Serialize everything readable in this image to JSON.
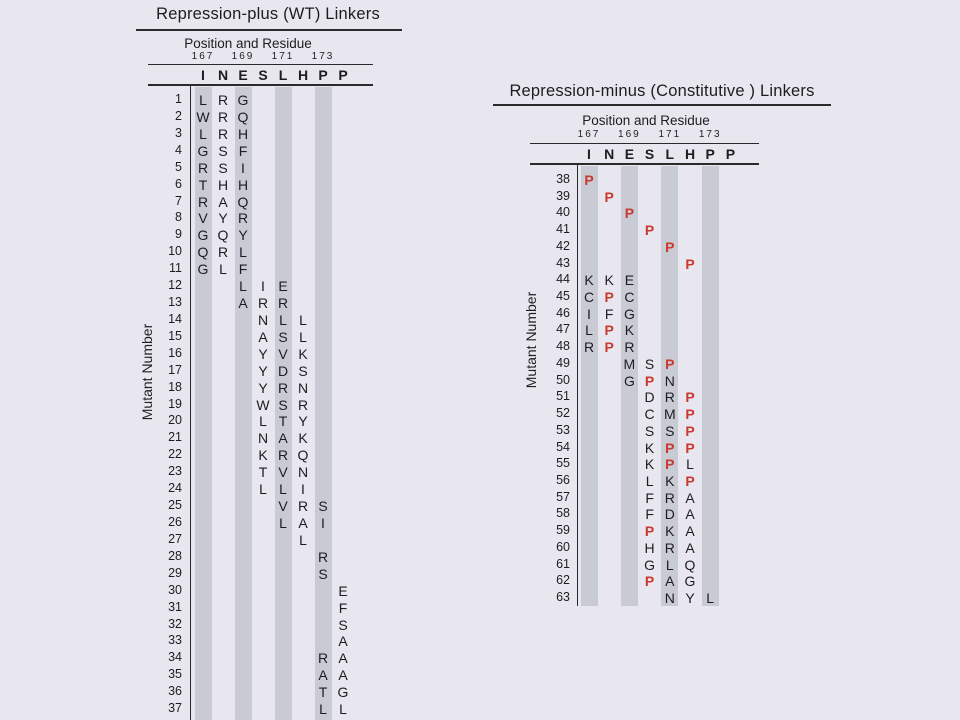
{
  "figure_name": "Linker mutant sequences",
  "colors": {
    "background": "#e8e7ef",
    "column_shade": "#c8cad4",
    "text": "#1d1d20",
    "mutant_p_red": "#c9392f",
    "line": "#2a2a2c"
  },
  "panels": [
    {
      "id": "repression-plus",
      "title": "Repression-plus (WT) Linkers",
      "subtitle": "Position and Residue",
      "positions": [
        "167",
        "169",
        "171",
        "173"
      ],
      "residues": [
        "I",
        "N",
        "E",
        "S",
        "L",
        "H",
        "P",
        "P"
      ],
      "ylabel": "Mutant Number",
      "shaded_columns": [
        0,
        2,
        4,
        6
      ],
      "rows": [
        {
          "n": "1",
          "cells": [
            [
              0,
              "L"
            ],
            [
              1,
              "R"
            ],
            [
              2,
              "G"
            ]
          ]
        },
        {
          "n": "2",
          "cells": [
            [
              0,
              "W"
            ],
            [
              1,
              "R"
            ],
            [
              2,
              "Q"
            ]
          ]
        },
        {
          "n": "3",
          "cells": [
            [
              0,
              "L"
            ],
            [
              1,
              "R"
            ],
            [
              2,
              "H"
            ]
          ]
        },
        {
          "n": "4",
          "cells": [
            [
              0,
              "G"
            ],
            [
              1,
              "S"
            ],
            [
              2,
              "F"
            ]
          ]
        },
        {
          "n": "5",
          "cells": [
            [
              0,
              "R"
            ],
            [
              1,
              "S"
            ],
            [
              2,
              "I"
            ]
          ]
        },
        {
          "n": "6",
          "cells": [
            [
              0,
              "T"
            ],
            [
              1,
              "H"
            ],
            [
              2,
              "H"
            ]
          ]
        },
        {
          "n": "7",
          "cells": [
            [
              0,
              "R"
            ],
            [
              1,
              "A"
            ],
            [
              2,
              "Q"
            ]
          ]
        },
        {
          "n": "8",
          "cells": [
            [
              0,
              "V"
            ],
            [
              1,
              "Y"
            ],
            [
              2,
              "R"
            ]
          ]
        },
        {
          "n": "9",
          "cells": [
            [
              0,
              "G"
            ],
            [
              1,
              "Q"
            ],
            [
              2,
              "Y"
            ]
          ]
        },
        {
          "n": "10",
          "cells": [
            [
              0,
              "Q"
            ],
            [
              1,
              "R"
            ],
            [
              2,
              "L"
            ]
          ]
        },
        {
          "n": "11",
          "cells": [
            [
              0,
              "G"
            ],
            [
              1,
              "L"
            ],
            [
              2,
              "F"
            ]
          ]
        },
        {
          "n": "12",
          "cells": [
            [
              2,
              "L"
            ],
            [
              3,
              "I"
            ],
            [
              4,
              "E"
            ]
          ]
        },
        {
          "n": "13",
          "cells": [
            [
              2,
              "A"
            ],
            [
              3,
              "R"
            ],
            [
              4,
              "R"
            ]
          ]
        },
        {
          "n": "14",
          "cells": [
            [
              3,
              "N"
            ],
            [
              4,
              "L"
            ],
            [
              5,
              "L"
            ]
          ]
        },
        {
          "n": "15",
          "cells": [
            [
              3,
              "A"
            ],
            [
              4,
              "S"
            ],
            [
              5,
              "L"
            ]
          ]
        },
        {
          "n": "16",
          "cells": [
            [
              3,
              "Y"
            ],
            [
              4,
              "V"
            ],
            [
              5,
              "K"
            ]
          ]
        },
        {
          "n": "17",
          "cells": [
            [
              3,
              "Y"
            ],
            [
              4,
              "D"
            ],
            [
              5,
              "S"
            ]
          ]
        },
        {
          "n": "18",
          "cells": [
            [
              3,
              "Y"
            ],
            [
              4,
              "R"
            ],
            [
              5,
              "N"
            ]
          ]
        },
        {
          "n": "19",
          "cells": [
            [
              3,
              "W"
            ],
            [
              4,
              "S"
            ],
            [
              5,
              "R"
            ]
          ]
        },
        {
          "n": "20",
          "cells": [
            [
              3,
              "L"
            ],
            [
              4,
              "T"
            ],
            [
              5,
              "Y"
            ]
          ]
        },
        {
          "n": "21",
          "cells": [
            [
              3,
              "N"
            ],
            [
              4,
              "A"
            ],
            [
              5,
              "K"
            ]
          ]
        },
        {
          "n": "22",
          "cells": [
            [
              3,
              "K"
            ],
            [
              4,
              "R"
            ],
            [
              5,
              "Q"
            ]
          ]
        },
        {
          "n": "23",
          "cells": [
            [
              3,
              "T"
            ],
            [
              4,
              "V"
            ],
            [
              5,
              "N"
            ]
          ]
        },
        {
          "n": "24",
          "cells": [
            [
              3,
              "L"
            ],
            [
              4,
              "L"
            ],
            [
              5,
              "I"
            ]
          ]
        },
        {
          "n": "25",
          "cells": [
            [
              4,
              "V"
            ],
            [
              5,
              "R"
            ],
            [
              6,
              "S"
            ]
          ]
        },
        {
          "n": "26",
          "cells": [
            [
              4,
              "L"
            ],
            [
              5,
              "A"
            ],
            [
              6,
              "I"
            ]
          ]
        },
        {
          "n": "27",
          "cells": [
            [
              5,
              "L"
            ]
          ]
        },
        {
          "n": "28",
          "cells": [
            [
              6,
              "R"
            ]
          ]
        },
        {
          "n": "29",
          "cells": [
            [
              6,
              "S"
            ]
          ]
        },
        {
          "n": "30",
          "cells": [
            [
              7,
              "E"
            ]
          ]
        },
        {
          "n": "31",
          "cells": [
            [
              7,
              "F"
            ]
          ]
        },
        {
          "n": "32",
          "cells": [
            [
              7,
              "S"
            ]
          ]
        },
        {
          "n": "33",
          "cells": [
            [
              7,
              "A"
            ]
          ]
        },
        {
          "n": "34",
          "cells": [
            [
              6,
              "R"
            ],
            [
              7,
              "A"
            ]
          ]
        },
        {
          "n": "35",
          "cells": [
            [
              6,
              "A"
            ],
            [
              7,
              "A"
            ]
          ]
        },
        {
          "n": "36",
          "cells": [
            [
              6,
              "T"
            ],
            [
              7,
              "G"
            ]
          ]
        },
        {
          "n": "37",
          "cells": [
            [
              6,
              "L"
            ],
            [
              7,
              "L"
            ]
          ]
        }
      ]
    },
    {
      "id": "repression-minus",
      "title": "Repression-minus (Constitutive ) Linkers",
      "subtitle": "Position and Residue",
      "positions": [
        "167",
        "169",
        "171",
        "173"
      ],
      "residues": [
        "I",
        "N",
        "E",
        "S",
        "L",
        "H",
        "P",
        "P"
      ],
      "ylabel": "Mutant Number",
      "shaded_columns": [
        0,
        2,
        4,
        6
      ],
      "rows": [
        {
          "n": "38",
          "cells": [
            [
              0,
              "P",
              1
            ]
          ]
        },
        {
          "n": "39",
          "cells": [
            [
              1,
              "P",
              1
            ]
          ]
        },
        {
          "n": "40",
          "cells": [
            [
              2,
              "P",
              1
            ]
          ]
        },
        {
          "n": "41",
          "cells": [
            [
              3,
              "P",
              1
            ]
          ]
        },
        {
          "n": "42",
          "cells": [
            [
              4,
              "P",
              1
            ]
          ]
        },
        {
          "n": "43",
          "cells": [
            [
              5,
              "P",
              1
            ]
          ]
        },
        {
          "n": "44",
          "cells": [
            [
              0,
              "K"
            ],
            [
              1,
              "K"
            ],
            [
              2,
              "E"
            ]
          ]
        },
        {
          "n": "45",
          "cells": [
            [
              0,
              "C"
            ],
            [
              1,
              "P",
              1
            ],
            [
              2,
              "C"
            ]
          ]
        },
        {
          "n": "46",
          "cells": [
            [
              0,
              "I"
            ],
            [
              1,
              "F"
            ],
            [
              2,
              "G"
            ]
          ]
        },
        {
          "n": "47",
          "cells": [
            [
              0,
              "L"
            ],
            [
              1,
              "P",
              1
            ],
            [
              2,
              "K"
            ]
          ]
        },
        {
          "n": "48",
          "cells": [
            [
              0,
              "R"
            ],
            [
              1,
              "P",
              1
            ],
            [
              2,
              "R"
            ]
          ]
        },
        {
          "n": "49",
          "cells": [
            [
              2,
              "M"
            ],
            [
              3,
              "S"
            ],
            [
              4,
              "P",
              1
            ]
          ]
        },
        {
          "n": "50",
          "cells": [
            [
              2,
              "G"
            ],
            [
              3,
              "P",
              1
            ],
            [
              4,
              "N"
            ]
          ]
        },
        {
          "n": "51",
          "cells": [
            [
              3,
              "D"
            ],
            [
              4,
              "R"
            ],
            [
              5,
              "P",
              1
            ]
          ]
        },
        {
          "n": "52",
          "cells": [
            [
              3,
              "C"
            ],
            [
              4,
              "M"
            ],
            [
              5,
              "P",
              1
            ]
          ]
        },
        {
          "n": "53",
          "cells": [
            [
              3,
              "S"
            ],
            [
              4,
              "S"
            ],
            [
              5,
              "P",
              1
            ]
          ]
        },
        {
          "n": "54",
          "cells": [
            [
              3,
              "K"
            ],
            [
              4,
              "P",
              1
            ],
            [
              5,
              "P",
              1
            ]
          ]
        },
        {
          "n": "55",
          "cells": [
            [
              3,
              "K"
            ],
            [
              4,
              "P",
              1
            ],
            [
              5,
              "L"
            ]
          ]
        },
        {
          "n": "56",
          "cells": [
            [
              3,
              "L"
            ],
            [
              4,
              "K"
            ],
            [
              5,
              "P",
              1
            ]
          ]
        },
        {
          "n": "57",
          "cells": [
            [
              3,
              "F"
            ],
            [
              4,
              "R"
            ],
            [
              5,
              "A"
            ]
          ]
        },
        {
          "n": "58",
          "cells": [
            [
              3,
              "F"
            ],
            [
              4,
              "D"
            ],
            [
              5,
              "A"
            ]
          ]
        },
        {
          "n": "59",
          "cells": [
            [
              3,
              "P",
              1
            ],
            [
              4,
              "K"
            ],
            [
              5,
              "A"
            ]
          ]
        },
        {
          "n": "60",
          "cells": [
            [
              3,
              "H"
            ],
            [
              4,
              "R"
            ],
            [
              5,
              "A"
            ]
          ]
        },
        {
          "n": "61",
          "cells": [
            [
              3,
              "G"
            ],
            [
              4,
              "L"
            ],
            [
              5,
              "Q"
            ]
          ]
        },
        {
          "n": "62",
          "cells": [
            [
              3,
              "P",
              1
            ],
            [
              4,
              "A"
            ],
            [
              5,
              "G"
            ]
          ]
        },
        {
          "n": "63",
          "cells": [
            [
              4,
              "N"
            ],
            [
              5,
              "Y"
            ],
            [
              6,
              "L"
            ]
          ]
        }
      ]
    }
  ]
}
